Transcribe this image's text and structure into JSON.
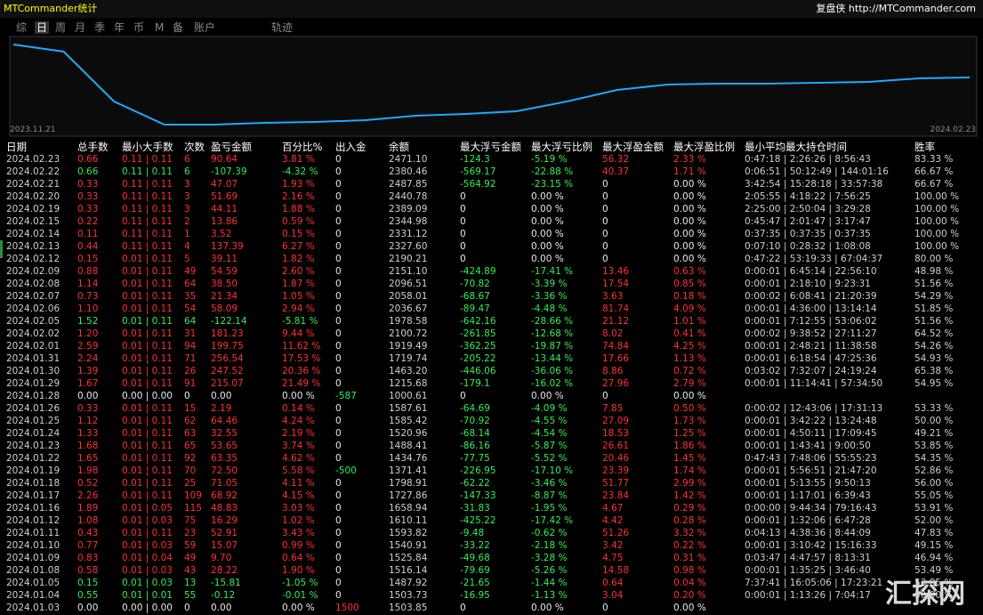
{
  "header": {
    "title": "MTCommander统计",
    "right": "复盘侠 http://MTCommander.com"
  },
  "tabs": [
    "综",
    "日",
    "周",
    "月",
    "季",
    "年",
    "币",
    "M",
    "备",
    "账户",
    "轨迹"
  ],
  "chart": {
    "type": "line",
    "start_label": "2023.11.21",
    "end_label": "2024.02.23",
    "ylim": [
      0,
      100
    ],
    "values": [
      95,
      87,
      31,
      5,
      5,
      7,
      8,
      10,
      15,
      17,
      20,
      31,
      44,
      50,
      51,
      51,
      52,
      53,
      57,
      58
    ]
  },
  "table": {
    "columns": [
      "日期",
      "总手数",
      "最小大手数",
      "次数",
      "盈亏金额",
      "百分比%",
      "出入金",
      "余额",
      "最大浮亏金额",
      "最大浮亏比例",
      "最大浮盈金额",
      "最大浮盈比例",
      "最小平均最大持仓时间",
      "胜率"
    ],
    "rows": [
      [
        "2024.02.23",
        "0.66",
        "0.11 | 0.11",
        "6",
        "90.64",
        "3.81 %",
        "0",
        "2471.10",
        "-124.3",
        "-5.19 %",
        "56.32",
        "2.33 %",
        "0:47:18 | 2:26:26 | 8:56:43",
        "83.33 %"
      ],
      [
        "2024.02.22",
        "0.66",
        "0.11 | 0.11",
        "6",
        "-107.39",
        "-4.32 %",
        "0",
        "2380.46",
        "-569.17",
        "-22.88 %",
        "40.37",
        "1.71 %",
        "0:06:51 | 50:12:49 | 144:01:16",
        "66.67 %"
      ],
      [
        "2024.02.21",
        "0.33",
        "0.11 | 0.11",
        "3",
        "47.07",
        "1.93 %",
        "0",
        "2487.85",
        "-564.92",
        "-23.15 %",
        "0",
        "0.00 %",
        "3:42:54 | 15:28:18 | 33:57:38",
        "66.67 %"
      ],
      [
        "2024.02.20",
        "0.33",
        "0.11 | 0.11",
        "3",
        "51.69",
        "2.16 %",
        "0",
        "2440.78",
        "0",
        "0.00 %",
        "0",
        "0.00 %",
        "2:05:55 | 4:18:22 | 7:56:25",
        "100.00 %"
      ],
      [
        "2024.02.19",
        "0.33",
        "0.11 | 0.11",
        "3",
        "44.11",
        "1.88 %",
        "0",
        "2389.09",
        "0",
        "0.00 %",
        "0",
        "0.00 %",
        "2:25:00 | 2:50:04 | 3:29:28",
        "100.00 %"
      ],
      [
        "2024.02.15",
        "0.22",
        "0.11 | 0.11",
        "2",
        "13.86",
        "0.59 %",
        "0",
        "2344.98",
        "0",
        "0.00 %",
        "0",
        "0.00 %",
        "0:45:47 | 2:01:47 | 3:17:47",
        "100.00 %"
      ],
      [
        "2024.02.14",
        "0.11",
        "0.11 | 0.11",
        "1",
        "3.52",
        "0.15 %",
        "0",
        "2331.12",
        "0",
        "0.00 %",
        "0",
        "0.00 %",
        "0:37:35 | 0:37:35 | 0:37:35",
        "100.00 %"
      ],
      [
        "2024.02.13",
        "0.44",
        "0.11 | 0.11",
        "4",
        "137.39",
        "6.27 %",
        "0",
        "2327.60",
        "0",
        "0.00 %",
        "0",
        "0.00 %",
        "0:07:10 | 0:28:32 | 1:08:08",
        "100.00 %"
      ],
      [
        "2024.02.12",
        "0.15",
        "0.01 | 0.11",
        "5",
        "39.11",
        "1.82 %",
        "0",
        "2190.21",
        "0",
        "0.00 %",
        "0",
        "0.00 %",
        "0:47:22 | 53:19:33 | 67:04:37",
        "80.00 %"
      ],
      [
        "2024.02.09",
        "0.88",
        "0.01 | 0.11",
        "49",
        "54.59",
        "2.60 %",
        "0",
        "2151.10",
        "-424.89",
        "-17.41 %",
        "13.46",
        "0.63 %",
        "0:00:01 | 6:45:14 | 22:56:10",
        "48.98 %"
      ],
      [
        "2024.02.08",
        "1.14",
        "0.01 | 0.11",
        "64",
        "38.50",
        "1.87 %",
        "0",
        "2096.51",
        "-70.82",
        "-3.39 %",
        "17.54",
        "0.85 %",
        "0:00:01 | 2:18:10 | 9:23:31",
        "51.56 %"
      ],
      [
        "2024.02.07",
        "0.73",
        "0.01 | 0.11",
        "35",
        "21.34",
        "1.05 %",
        "0",
        "2058.01",
        "-68.67",
        "-3.36 %",
        "3.63",
        "0.18 %",
        "0:00:02 | 6:08:41 | 21:20:39",
        "54.29 %"
      ],
      [
        "2024.02.06",
        "1.10",
        "0.01 | 0.11",
        "54",
        "58.09",
        "2.94 %",
        "0",
        "2036.67",
        "-89.47",
        "-4.48 %",
        "81.74",
        "4.09 %",
        "0:00:01 | 4:36:00 | 13:14:14",
        "51.85 %"
      ],
      [
        "2024.02.05",
        "1.52",
        "0.01 | 0.11",
        "64",
        "-122.14",
        "-5.81 %",
        "0",
        "1978.58",
        "-642.16",
        "-28.66 %",
        "21.12",
        "1.01 %",
        "0:00:01 | 7:12:55 | 53:06:02",
        "51.56 %"
      ],
      [
        "2024.02.02",
        "1.20",
        "0.01 | 0.11",
        "31",
        "181.23",
        "9.44 %",
        "0",
        "2100.72",
        "-261.85",
        "-12.68 %",
        "8.02",
        "0.41 %",
        "0:00:02 | 9:38:52 | 27:11:27",
        "64.52 %"
      ],
      [
        "2024.02.01",
        "2.59",
        "0.01 | 0.11",
        "94",
        "199.75",
        "11.62 %",
        "0",
        "1919.49",
        "-362.25",
        "-19.87 %",
        "74.84",
        "4.25 %",
        "0:00:01 | 2:48:21 | 11:38:58",
        "54.26 %"
      ],
      [
        "2024.01.31",
        "2.24",
        "0.01 | 0.11",
        "71",
        "256.54",
        "17.53 %",
        "0",
        "1719.74",
        "-205.22",
        "-13.44 %",
        "17.66",
        "1.13 %",
        "0:00:01 | 6:18:54 | 47:25:36",
        "54.93 %"
      ],
      [
        "2024.01.30",
        "1.39",
        "0.01 | 0.11",
        "26",
        "247.52",
        "20.36 %",
        "0",
        "1463.20",
        "-446.06",
        "-36.06 %",
        "8.86",
        "0.72 %",
        "0:03:02 | 7:32:07 | 24:19:24",
        "65.38 %"
      ],
      [
        "2024.01.29",
        "1.67",
        "0.01 | 0.11",
        "91",
        "215.07",
        "21.49 %",
        "0",
        "1215.68",
        "-179.1",
        "-16.02 %",
        "27.96",
        "2.79 %",
        "0:00:01 | 11:14:41 | 57:34:50",
        "54.95 %"
      ],
      [
        "2024.01.28",
        "0.00",
        "0.00 | 0.00",
        "0",
        "0.00",
        "0.00 %",
        "-587",
        "1000.61",
        "0",
        "0.00 %",
        "0",
        "0.00 %",
        null,
        null
      ],
      [
        "2024.01.26",
        "0.33",
        "0.01 | 0.11",
        "15",
        "2.19",
        "0.14 %",
        "0",
        "1587.61",
        "-64.69",
        "-4.09 %",
        "7.85",
        "0.50 %",
        "0:00:02 | 12:43:06 | 17:31:13",
        "53.33 %"
      ],
      [
        "2024.01.25",
        "1.12",
        "0.01 | 0.11",
        "62",
        "64.46",
        "4.24 %",
        "0",
        "1585.42",
        "-70.92",
        "-4.55 %",
        "27.09",
        "1.73 %",
        "0:00:01 | 3:42:22 | 13:24:48",
        "50.00 %"
      ],
      [
        "2024.01.24",
        "1.33",
        "0.01 | 0.11",
        "63",
        "32.55",
        "2.19 %",
        "0",
        "1520.96",
        "-68.14",
        "-4.54 %",
        "18.53",
        "1.25 %",
        "0:00:01 | 4:50:11 | 17:09:45",
        "49.21 %"
      ],
      [
        "2024.01.23",
        "1.68",
        "0.01 | 0.11",
        "65",
        "53.65",
        "3.74 %",
        "0",
        "1488.41",
        "-86.16",
        "-5.87 %",
        "26.61",
        "1.86 %",
        "0:00:01 | 1:43:41 | 9:00:50",
        "53.85 %"
      ],
      [
        "2024.01.22",
        "1.65",
        "0.01 | 0.11",
        "92",
        "63.35",
        "4.62 %",
        "0",
        "1434.76",
        "-77.75",
        "-5.52 %",
        "20.46",
        "1.45 %",
        "0:47:43 | 7:48:06 | 55:55:23",
        "54.35 %"
      ],
      [
        "2024.01.19",
        "1.98",
        "0.01 | 0.11",
        "70",
        "72.50",
        "5.58 %",
        "-500",
        "1371.41",
        "-226.95",
        "-17.10 %",
        "23.39",
        "1.74 %",
        "0:00:01 | 5:56:51 | 21:47:20",
        "52.86 %"
      ],
      [
        "2024.01.18",
        "0.52",
        "0.01 | 0.11",
        "25",
        "71.05",
        "4.11 %",
        "0",
        "1798.91",
        "-62.22",
        "-3.46 %",
        "51.77",
        "2.99 %",
        "0:00:01 | 5:13:55 | 9:50:13",
        "56.00 %"
      ],
      [
        "2024.01.17",
        "2.26",
        "0.01 | 0.11",
        "109",
        "68.92",
        "4.15 %",
        "0",
        "1727.86",
        "-147.33",
        "-8.87 %",
        "23.84",
        "1.42 %",
        "0:00:01 | 1:17:01 | 6:39:43",
        "55.05 %"
      ],
      [
        "2024.01.16",
        "1.89",
        "0.01 | 0.05",
        "115",
        "48.83",
        "3.03 %",
        "0",
        "1658.94",
        "-31.83",
        "-1.95 %",
        "4.67",
        "0.29 %",
        "0:00:00 | 9:44:34 | 79:16:43",
        "53.91 %"
      ],
      [
        "2024.01.12",
        "1.08",
        "0.01 | 0.03",
        "75",
        "16.29",
        "1.02 %",
        "0",
        "1610.11",
        "-425.22",
        "-17.42 %",
        "4.42",
        "0.28 %",
        "0:00:01 | 1:32:06 | 6:47:28",
        "52.00 %"
      ],
      [
        "2024.01.11",
        "0.43",
        "0.01 | 0.11",
        "23",
        "52.91",
        "3.43 %",
        "0",
        "1593.82",
        "-9.48",
        "-0.62 %",
        "51.26",
        "3.32 %",
        "0:04:13 | 4:38:36 | 8:44:09",
        "47.83 %"
      ],
      [
        "2024.01.10",
        "0.77",
        "0.01 | 0.03",
        "59",
        "15.07",
        "0.99 %",
        "0",
        "1540.91",
        "-33.22",
        "-2.18 %",
        "3.42",
        "0.22 %",
        "0:00:01 | 3:10:42 | 15:16:33",
        "49.15 %"
      ],
      [
        "2024.01.09",
        "0.83",
        "0.01 | 0.04",
        "49",
        "9.70",
        "0.64 %",
        "0",
        "1525.84",
        "-49.68",
        "-3.28 %",
        "4.75",
        "0.31 %",
        "0:03:47 | 4:47:57 | 8:13:31",
        "46.94 %"
      ],
      [
        "2024.01.08",
        "0.58",
        "0.01 | 0.03",
        "43",
        "28.22",
        "1.90 %",
        "0",
        "1516.14",
        "-79.69",
        "-5.26 %",
        "14.58",
        "0.98 %",
        "0:00:01 | 1:35:25 | 3:46:40",
        "53.49 %"
      ],
      [
        "2024.01.05",
        "0.15",
        "0.01 | 0.03",
        "13",
        "-15.81",
        "-1.05 %",
        "0",
        "1487.92",
        "-21.65",
        "-1.44 %",
        "0.64",
        "0.04 %",
        "7:37:41 | 16:05:06 | 17:23:21",
        "53.85 %"
      ],
      [
        "2024.01.04",
        "0.55",
        "0.01 | 0.01",
        "55",
        "-0.12",
        "-0.01 %",
        "0",
        "1503.73",
        "-16.95",
        "-1.13 %",
        "3.04",
        "0.20 %",
        "0:00:01 | 1:13:26 | 7:04:17",
        "50.00 %"
      ],
      [
        "2024.01.03",
        "0.00",
        "0.00 | 0.00",
        "0",
        "0.00",
        "0.00 %",
        "1500",
        "1503.85",
        "0",
        "0.00 %",
        "0",
        "0.00 %",
        null,
        null
      ]
    ]
  },
  "watermark": "汇探网"
}
